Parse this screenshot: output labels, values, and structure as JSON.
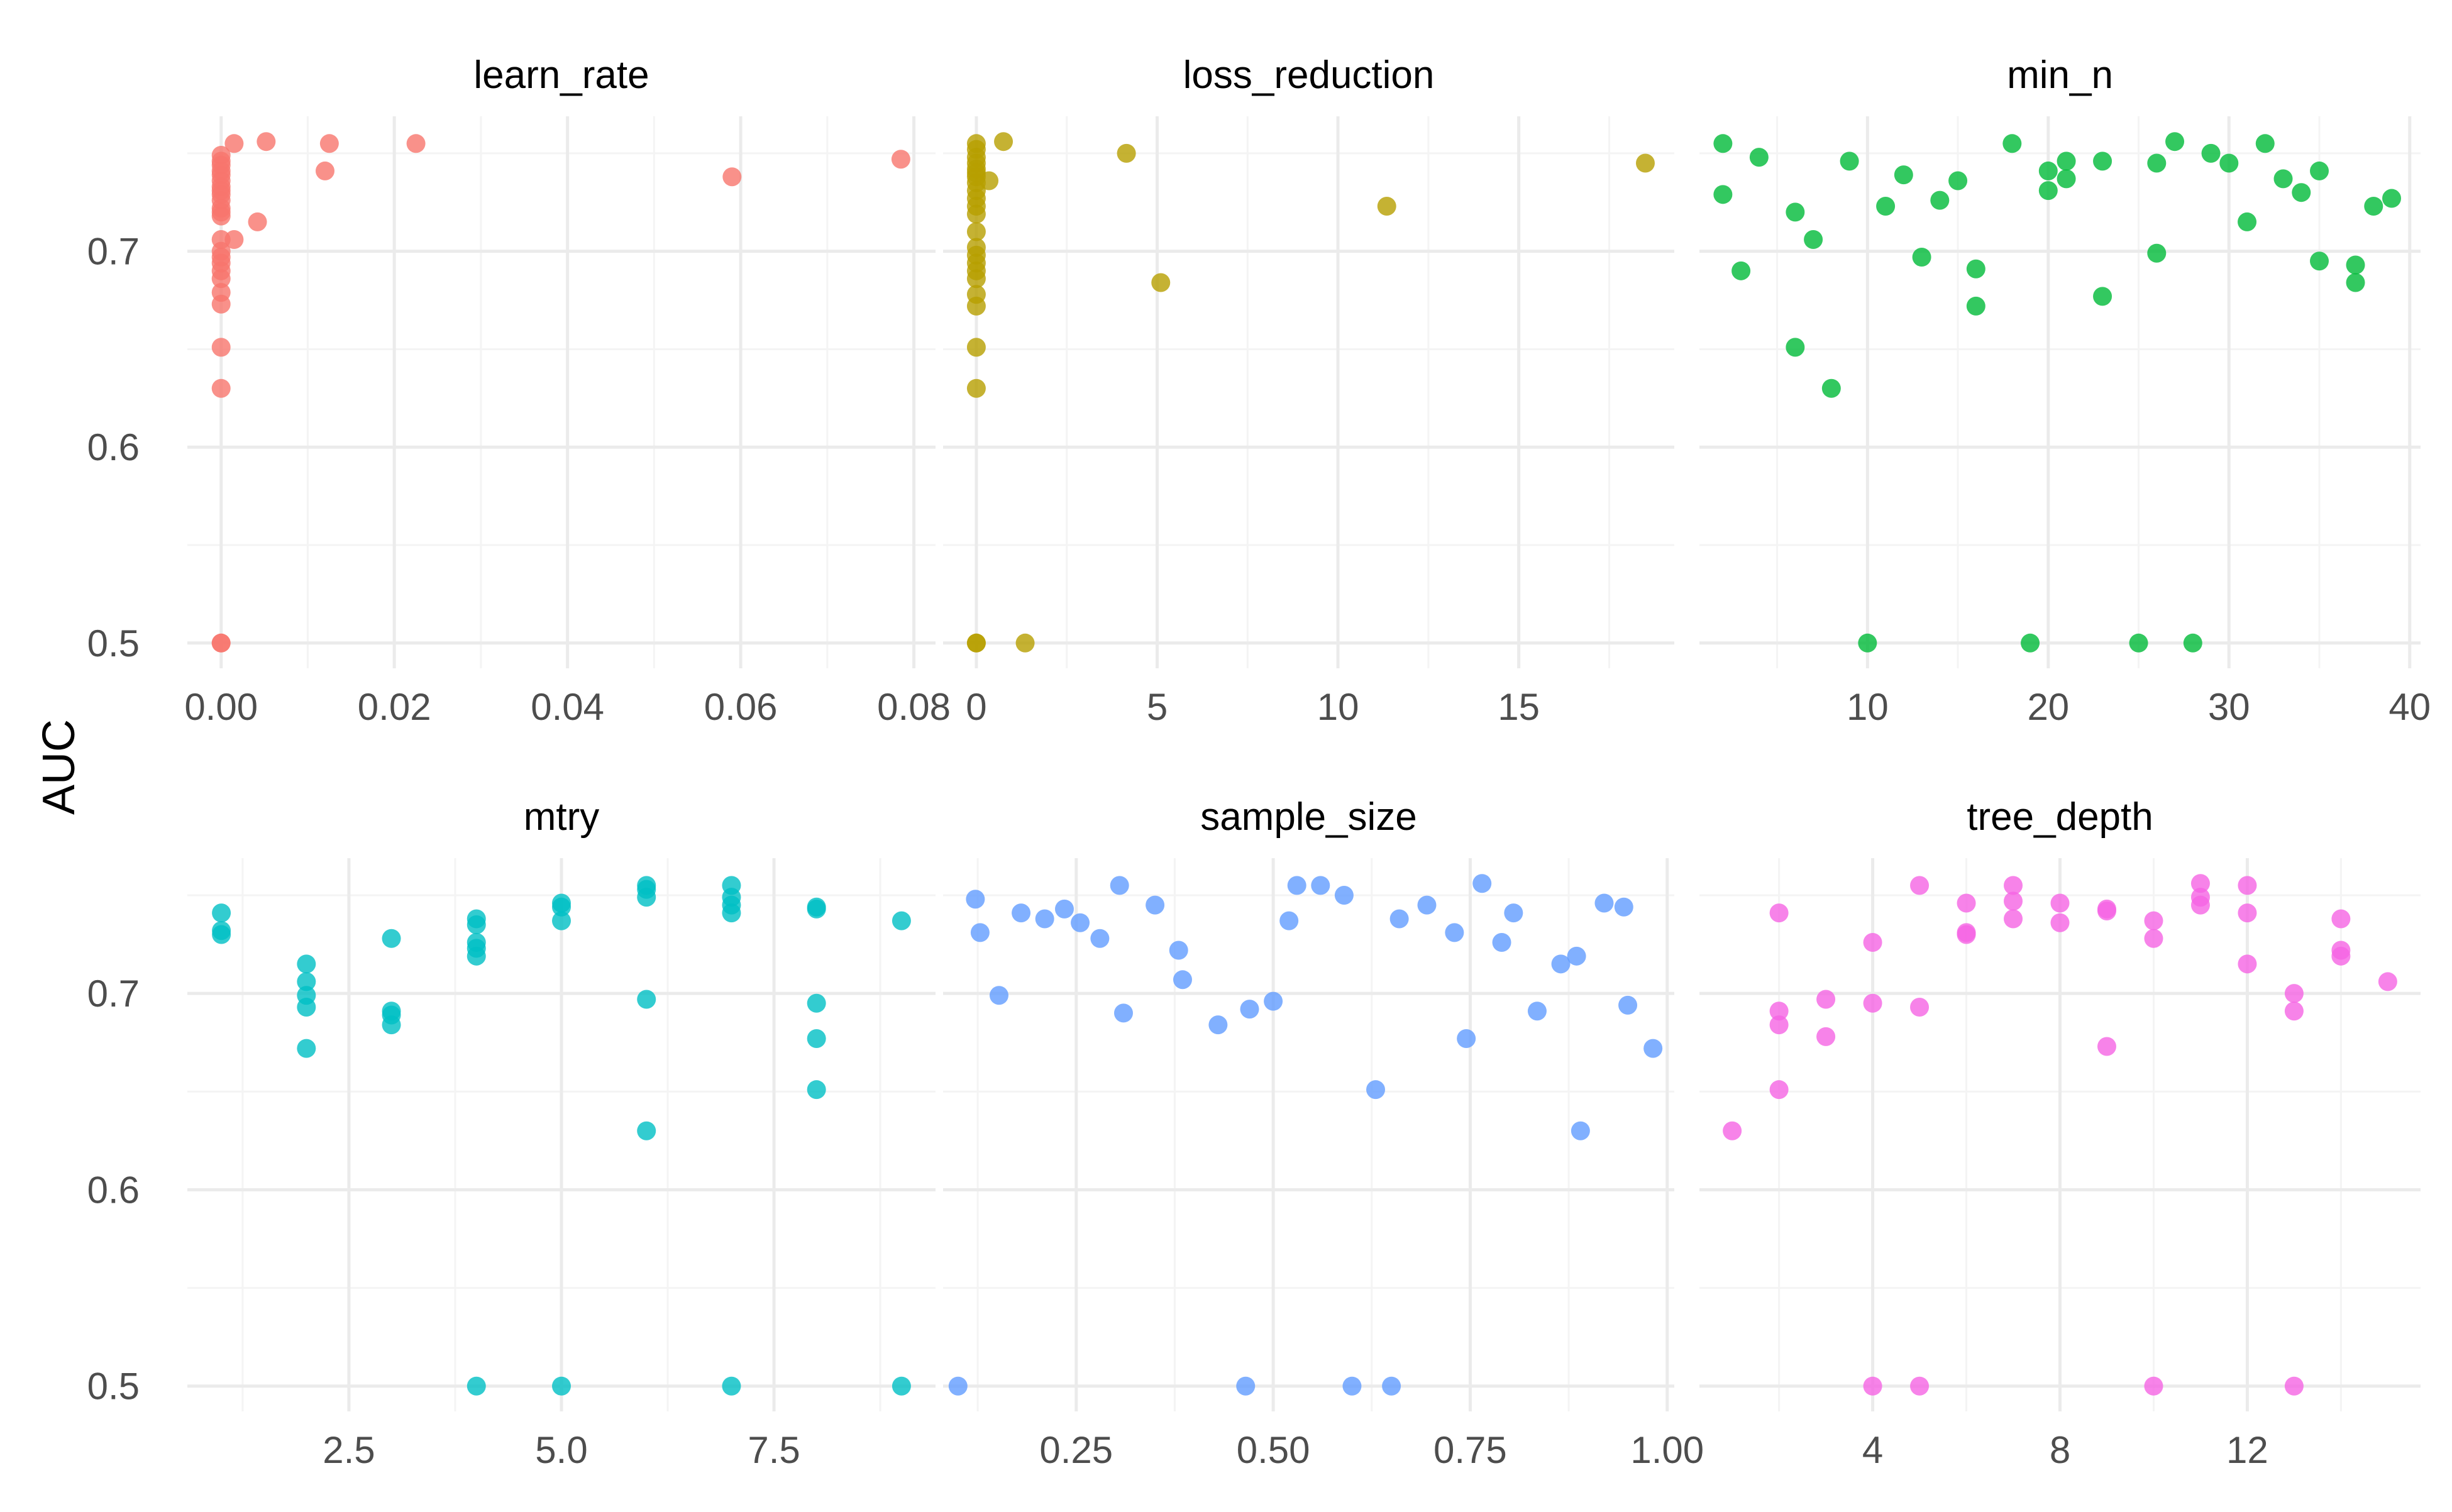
{
  "figure": {
    "ylabel": "AUC",
    "point_alpha": 0.8,
    "background": "#ffffff",
    "grid_major_color": "#ebebeb",
    "grid_minor_color": "#f4f4f4",
    "text_color": "#000000",
    "tick_color": "#4d4d4d"
  },
  "chart_data": [
    {
      "type": "scatter",
      "facet": "learn_rate",
      "color": "#F8766D",
      "xlim": [
        -0.0039,
        0.0825
      ],
      "ylim": [
        0.4871,
        0.7689
      ],
      "x_ticks": [
        0.0,
        0.02,
        0.04,
        0.06,
        0.08
      ],
      "x_tick_labels": [
        "0.00",
        "0.02",
        "0.04",
        "0.06",
        "0.08"
      ],
      "y_ticks": [
        0.5,
        0.6,
        0.7
      ],
      "y_tick_labels": [
        "0.5",
        "0.6",
        "0.7"
      ],
      "x": [
        0,
        0,
        0,
        0,
        0,
        0,
        0,
        0,
        0,
        0,
        0,
        0,
        0,
        0,
        0,
        0,
        0,
        0,
        0,
        0,
        0,
        0,
        0,
        0,
        0,
        0.0015,
        0.0052,
        0.0125,
        0.0225,
        0.0015,
        0.0042,
        0.012,
        0.059,
        0.0785
      ],
      "y": [
        0.749,
        0.746,
        0.744,
        0.739,
        0.736,
        0.733,
        0.729,
        0.726,
        0.722,
        0.72,
        0.7,
        0.697,
        0.694,
        0.69,
        0.686,
        0.679,
        0.673,
        0.651,
        0.63,
        0.5,
        0.5,
        0.741,
        0.731,
        0.718,
        0.706,
        0.755,
        0.756,
        0.755,
        0.755,
        0.706,
        0.715,
        0.741,
        0.738,
        0.747
      ]
    },
    {
      "type": "scatter",
      "facet": "loss_reduction",
      "color": "#B79F00",
      "xlim": [
        -0.92,
        19.3
      ],
      "ylim": [
        0.4871,
        0.7689
      ],
      "x_ticks": [
        0,
        5,
        10,
        15
      ],
      "x_tick_labels": [
        "0",
        "5",
        "10",
        "15"
      ],
      "y_ticks": [
        0.5,
        0.6,
        0.7
      ],
      "y_tick_labels": [
        "0.5",
        "0.6",
        "0.7"
      ],
      "x": [
        0,
        0,
        0,
        0,
        0,
        0,
        0,
        0,
        0,
        0,
        0,
        0,
        0,
        0,
        0,
        0,
        0,
        0,
        0,
        0,
        0,
        0,
        0,
        0,
        0.35,
        0.75,
        4.15,
        5.1,
        11.35,
        18.5,
        1.35
      ],
      "y": [
        0.755,
        0.752,
        0.748,
        0.745,
        0.742,
        0.738,
        0.735,
        0.731,
        0.727,
        0.723,
        0.719,
        0.71,
        0.702,
        0.698,
        0.694,
        0.69,
        0.686,
        0.678,
        0.672,
        0.651,
        0.63,
        0.5,
        0.5,
        0.74,
        0.736,
        0.756,
        0.75,
        0.684,
        0.723,
        0.745,
        0.5
      ]
    },
    {
      "type": "scatter",
      "facet": "min_n",
      "color": "#00BA38",
      "xlim": [
        0.7,
        40.6
      ],
      "ylim": [
        0.4871,
        0.7689
      ],
      "x_ticks": [
        10,
        20,
        30,
        40
      ],
      "x_tick_labels": [
        "10",
        "20",
        "30",
        "40"
      ],
      "y_ticks": [
        0.5,
        0.6,
        0.7
      ],
      "y_tick_labels": [
        "0.5",
        "0.6",
        "0.7"
      ],
      "x": [
        2,
        2,
        3,
        4,
        6,
        6,
        7,
        8,
        9,
        10,
        11,
        12,
        13,
        14,
        15,
        16,
        16,
        18,
        19,
        20,
        20,
        21,
        21,
        23,
        23,
        25,
        26,
        26,
        27,
        28,
        29,
        30,
        31,
        32,
        33,
        34,
        35,
        35,
        37,
        37,
        38,
        39
      ],
      "y": [
        0.755,
        0.729,
        0.69,
        0.748,
        0.72,
        0.651,
        0.706,
        0.63,
        0.746,
        0.5,
        0.723,
        0.739,
        0.697,
        0.726,
        0.736,
        0.691,
        0.672,
        0.755,
        0.5,
        0.741,
        0.731,
        0.746,
        0.737,
        0.746,
        0.677,
        0.5,
        0.745,
        0.699,
        0.756,
        0.5,
        0.75,
        0.745,
        0.715,
        0.755,
        0.737,
        0.73,
        0.741,
        0.695,
        0.684,
        0.693,
        0.723,
        0.727
      ]
    },
    {
      "type": "scatter",
      "facet": "mtry",
      "color": "#00BFC4",
      "xlim": [
        0.6,
        9.4
      ],
      "ylim": [
        0.4871,
        0.7689
      ],
      "x_ticks": [
        2.5,
        5.0,
        7.5
      ],
      "x_tick_labels": [
        "2.5",
        "5.0",
        "7.5"
      ],
      "y_ticks": [
        0.5,
        0.6,
        0.7
      ],
      "y_tick_labels": [
        "0.5",
        "0.6",
        "0.7"
      ],
      "x": [
        1,
        1,
        1,
        2,
        2,
        2,
        2,
        2,
        3,
        3,
        3,
        3,
        4,
        4,
        4,
        4,
        4,
        4,
        5,
        5,
        5,
        5,
        6,
        6,
        6,
        6,
        6,
        7,
        7,
        7,
        7,
        7,
        8,
        8,
        8,
        8,
        8,
        9,
        9
      ],
      "y": [
        0.741,
        0.732,
        0.73,
        0.715,
        0.706,
        0.699,
        0.693,
        0.672,
        0.728,
        0.691,
        0.689,
        0.684,
        0.738,
        0.735,
        0.726,
        0.723,
        0.719,
        0.5,
        0.746,
        0.744,
        0.737,
        0.5,
        0.755,
        0.753,
        0.749,
        0.697,
        0.63,
        0.755,
        0.749,
        0.745,
        0.741,
        0.5,
        0.744,
        0.743,
        0.695,
        0.677,
        0.651,
        0.737,
        0.5
      ]
    },
    {
      "type": "scatter",
      "facet": "sample_size",
      "color": "#619CFF",
      "xlim": [
        0.081,
        1.009
      ],
      "ylim": [
        0.4871,
        0.7689
      ],
      "x_ticks": [
        0.25,
        0.5,
        0.75,
        1.0
      ],
      "x_tick_labels": [
        "0.25",
        "0.50",
        "0.75",
        "1.00"
      ],
      "y_ticks": [
        0.5,
        0.6,
        0.7
      ],
      "y_tick_labels": [
        "0.5",
        "0.6",
        "0.7"
      ],
      "x": [
        0.1,
        0.122,
        0.128,
        0.152,
        0.18,
        0.21,
        0.235,
        0.255,
        0.28,
        0.305,
        0.31,
        0.35,
        0.38,
        0.385,
        0.43,
        0.465,
        0.47,
        0.5,
        0.52,
        0.53,
        0.56,
        0.59,
        0.6,
        0.63,
        0.65,
        0.66,
        0.695,
        0.73,
        0.745,
        0.765,
        0.79,
        0.805,
        0.835,
        0.865,
        0.885,
        0.89,
        0.92,
        0.945,
        0.95,
        0.982
      ],
      "y": [
        0.5,
        0.748,
        0.731,
        0.699,
        0.741,
        0.738,
        0.743,
        0.736,
        0.728,
        0.755,
        0.69,
        0.745,
        0.722,
        0.707,
        0.684,
        0.5,
        0.692,
        0.696,
        0.737,
        0.755,
        0.755,
        0.75,
        0.5,
        0.651,
        0.5,
        0.738,
        0.745,
        0.731,
        0.677,
        0.756,
        0.726,
        0.741,
        0.691,
        0.715,
        0.719,
        0.63,
        0.746,
        0.744,
        0.694,
        0.672
      ]
    },
    {
      "type": "scatter",
      "facet": "tree_depth",
      "color": "#F564E3",
      "xlim": [
        0.3,
        15.7
      ],
      "ylim": [
        0.4871,
        0.7689
      ],
      "x_ticks": [
        4,
        8,
        12
      ],
      "x_tick_labels": [
        "4",
        "8",
        "12"
      ],
      "y_ticks": [
        0.5,
        0.6,
        0.7
      ],
      "y_tick_labels": [
        "0.5",
        "0.6",
        "0.7"
      ],
      "x": [
        1,
        2,
        2,
        2,
        2,
        3,
        3,
        4,
        4,
        4,
        5,
        5,
        5,
        6,
        6,
        6,
        7,
        7,
        7,
        8,
        8,
        9,
        9,
        9,
        10,
        10,
        10,
        11,
        11,
        11,
        12,
        12,
        12,
        13,
        13,
        13,
        14,
        14,
        14,
        15
      ],
      "y": [
        0.63,
        0.741,
        0.691,
        0.684,
        0.651,
        0.697,
        0.678,
        0.726,
        0.695,
        0.5,
        0.755,
        0.693,
        0.5,
        0.746,
        0.731,
        0.73,
        0.755,
        0.747,
        0.738,
        0.746,
        0.736,
        0.743,
        0.742,
        0.673,
        0.737,
        0.728,
        0.5,
        0.756,
        0.749,
        0.745,
        0.755,
        0.741,
        0.715,
        0.7,
        0.691,
        0.5,
        0.738,
        0.722,
        0.719,
        0.706
      ]
    }
  ]
}
